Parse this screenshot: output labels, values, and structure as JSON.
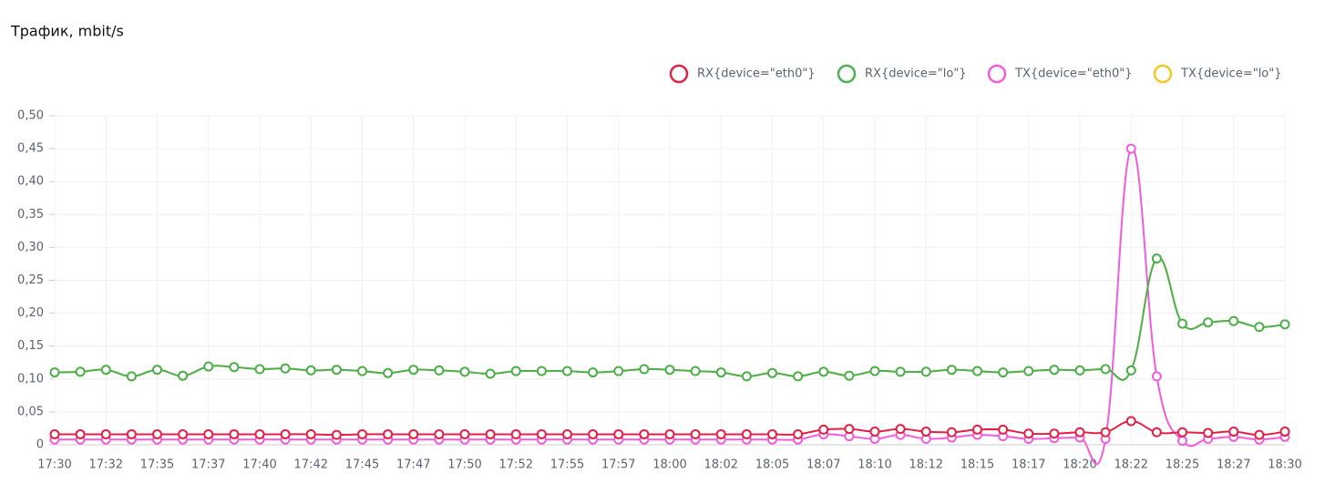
{
  "chart_data": {
    "type": "line",
    "title": "Трафик, mbit/s",
    "categories": [
      "17:30",
      null,
      "17:32",
      null,
      "17:35",
      null,
      "17:37",
      null,
      "17:40",
      null,
      "17:42",
      null,
      "17:45",
      null,
      "17:47",
      null,
      "17:50",
      null,
      "17:52",
      null,
      "17:55",
      null,
      "17:57",
      null,
      "18:00",
      null,
      "18:02",
      null,
      "18:05",
      null,
      "18:07",
      null,
      "18:10",
      null,
      "18:12",
      null,
      "18:15",
      null,
      "18:17",
      null,
      "18:20",
      null,
      "18:22",
      null,
      "18:25",
      null,
      "18:27",
      null,
      "18:30"
    ],
    "series": [
      {
        "name": "RX{device=\"eth0\"}",
        "color": "#e32145",
        "values": [
          0.016,
          0.016,
          0.016,
          0.016,
          0.016,
          0.016,
          0.016,
          0.016,
          0.016,
          0.016,
          0.016,
          0.015,
          0.016,
          0.016,
          0.016,
          0.016,
          0.016,
          0.016,
          0.016,
          0.016,
          0.016,
          0.016,
          0.016,
          0.016,
          0.016,
          0.016,
          0.016,
          0.016,
          0.016,
          0.016,
          0.023,
          0.024,
          0.02,
          0.024,
          0.02,
          0.019,
          0.023,
          0.023,
          0.017,
          0.017,
          0.019,
          0.019,
          0.036,
          0.019,
          0.019,
          0.018,
          0.02,
          0.015,
          0.02
        ]
      },
      {
        "name": "RX{device=\"lo\"}",
        "color": "#4caf50",
        "values": [
          0.11,
          0.111,
          0.114,
          0.104,
          0.114,
          0.105,
          0.119,
          0.118,
          0.115,
          0.116,
          0.113,
          0.114,
          0.112,
          0.109,
          0.114,
          0.113,
          0.111,
          0.108,
          0.112,
          0.112,
          0.112,
          0.11,
          0.112,
          0.115,
          0.114,
          0.112,
          0.11,
          0.104,
          0.109,
          0.104,
          0.111,
          0.105,
          0.112,
          0.111,
          0.111,
          0.114,
          0.112,
          0.11,
          0.112,
          0.114,
          0.113,
          0.115,
          0.113,
          0.283,
          0.184,
          0.186,
          0.188,
          0.179,
          0.183
        ]
      },
      {
        "name": "TX{device=\"eth0\"}",
        "color": "#f25cdc",
        "values": [
          0.008,
          0.008,
          0.008,
          0.008,
          0.008,
          0.008,
          0.008,
          0.008,
          0.008,
          0.008,
          0.008,
          0.008,
          0.008,
          0.008,
          0.008,
          0.008,
          0.008,
          0.008,
          0.008,
          0.008,
          0.008,
          0.008,
          0.008,
          0.008,
          0.008,
          0.008,
          0.008,
          0.008,
          0.008,
          0.008,
          0.016,
          0.013,
          0.009,
          0.015,
          0.009,
          0.011,
          0.015,
          0.013,
          0.009,
          0.01,
          0.011,
          0.009,
          0.45,
          0.104,
          0.006,
          0.009,
          0.012,
          0.008,
          0.012
        ]
      },
      {
        "name": "TX{device=\"lo\"}",
        "color": "#f2c726",
        "values": [
          0.11,
          0.111,
          0.114,
          0.104,
          0.114,
          0.105,
          0.119,
          0.118,
          0.115,
          0.116,
          0.113,
          0.114,
          0.112,
          0.109,
          0.114,
          0.113,
          0.111,
          0.108,
          0.112,
          0.112,
          0.112,
          0.11,
          0.112,
          0.115,
          0.114,
          0.112,
          0.11,
          0.104,
          0.109,
          0.104,
          0.111,
          0.105,
          0.112,
          0.111,
          0.111,
          0.114,
          0.112,
          0.11,
          0.112,
          0.114,
          0.113,
          0.115,
          0.113,
          0.283,
          0.184,
          0.186,
          0.188,
          0.179,
          0.183
        ]
      }
    ],
    "ylim": [
      0,
      0.5
    ],
    "yticks": [
      0,
      {
        "value": 0.05,
        "label": "0,05"
      },
      {
        "value": 0.1,
        "label": "0,10"
      },
      {
        "value": 0.15,
        "label": "0,15"
      },
      {
        "value": 0.2,
        "label": "0,20"
      },
      {
        "value": 0.25,
        "label": "0,25"
      },
      {
        "value": 0.3,
        "label": "0,30"
      },
      {
        "value": 0.35,
        "label": "0,35"
      },
      {
        "value": 0.4,
        "label": "0,40"
      },
      {
        "value": 0.45,
        "label": "0,45"
      },
      {
        "value": 0.5,
        "label": "0,50"
      }
    ],
    "grid": true,
    "legend": "top-right"
  }
}
